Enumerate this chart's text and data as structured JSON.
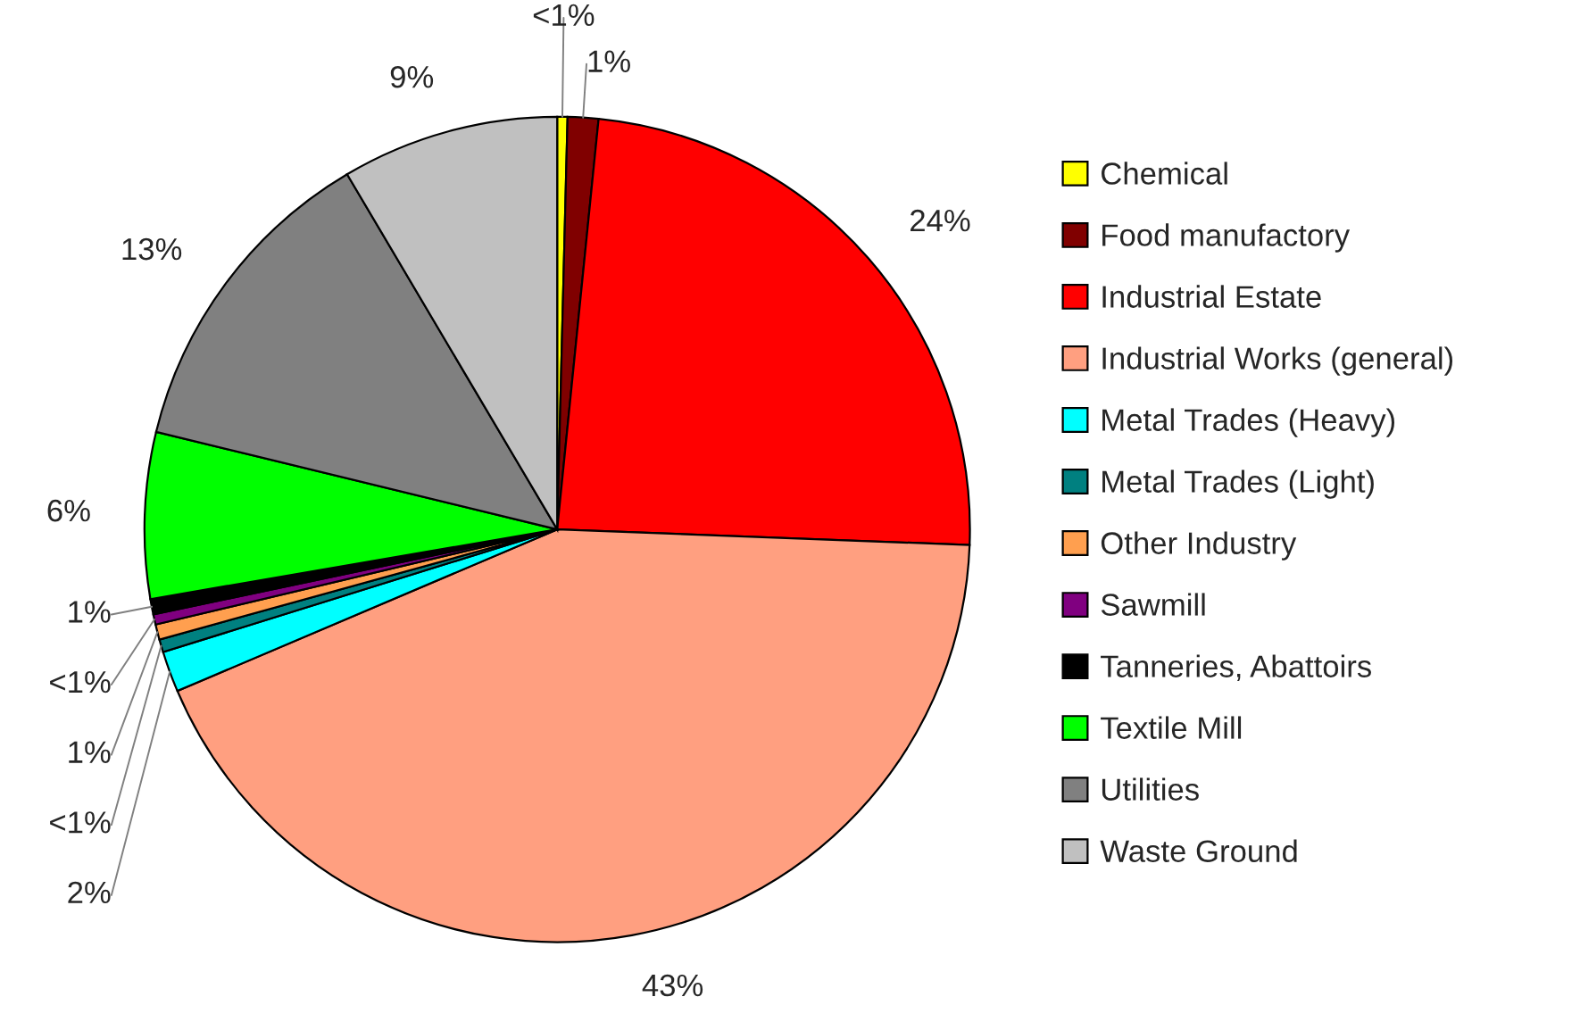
{
  "chart_data": {
    "type": "pie",
    "categories": [
      "Chemical",
      "Food manufactory",
      "Industrial Estate",
      "Industrial Works (general)",
      "Metal Trades (Heavy)",
      "Metal Trades (Light)",
      "Other Industry",
      "Sawmill",
      "Tanneries, Abattoirs",
      "Textile Mill",
      "Utilities",
      "Waste Ground"
    ],
    "values": [
      0.4,
      1.2,
      24,
      43,
      1.6,
      0.5,
      0.6,
      0.4,
      0.6,
      6.5,
      12.7,
      8.5
    ],
    "colors": [
      "#ffff00",
      "#800000",
      "#ff0000",
      "#ff9f80",
      "#00ffff",
      "#008080",
      "#ff9f4f",
      "#800080",
      "#000000",
      "#00ff00",
      "#808080",
      "#c0c0c0"
    ],
    "value_labels": [
      "<1%",
      "1%",
      "24%",
      "43%",
      "2%",
      "<1%",
      "1%",
      "<1%",
      "1%",
      "6%",
      "13%",
      "9%"
    ],
    "legend": "right"
  }
}
